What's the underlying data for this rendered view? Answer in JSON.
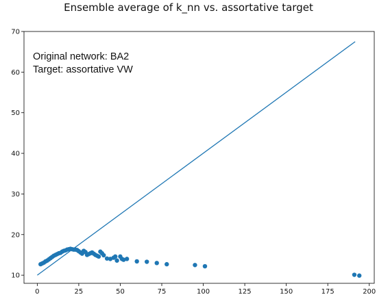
{
  "chart_data": {
    "type": "scatter",
    "title": "Ensemble average of k_nn vs. assortative target",
    "xlabel": "",
    "ylabel": "",
    "xlim": [
      -8,
      203
    ],
    "ylim": [
      8,
      70
    ],
    "xticks": [
      0,
      25,
      50,
      75,
      100,
      125,
      150,
      175,
      200
    ],
    "yticks": [
      10,
      20,
      30,
      40,
      50,
      60,
      70
    ],
    "grid": false,
    "annotations": [
      "Original network: BA2",
      "Target: assortative VW"
    ],
    "line": {
      "type": "line",
      "x": [
        0,
        191.5
      ],
      "y": [
        10.0,
        67.5
      ],
      "color": "#1f77b4"
    },
    "scatter": {
      "type": "scatter",
      "color": "#1f77b4",
      "points": [
        [
          2,
          12.7
        ],
        [
          3,
          12.9
        ],
        [
          4,
          13.1
        ],
        [
          5,
          13.4
        ],
        [
          6,
          13.6
        ],
        [
          7,
          13.9
        ],
        [
          8,
          14.2
        ],
        [
          9,
          14.5
        ],
        [
          10,
          14.8
        ],
        [
          11,
          15.0
        ],
        [
          12,
          15.2
        ],
        [
          13,
          15.4
        ],
        [
          14,
          15.5
        ],
        [
          15,
          15.8
        ],
        [
          16,
          16.0
        ],
        [
          17,
          16.1
        ],
        [
          18,
          16.3
        ],
        [
          19,
          16.4
        ],
        [
          20,
          16.5
        ],
        [
          21,
          16.4
        ],
        [
          22,
          16.3
        ],
        [
          23,
          16.3
        ],
        [
          24,
          16.2
        ],
        [
          25,
          15.9
        ],
        [
          26,
          15.6
        ],
        [
          27,
          15.3
        ],
        [
          28,
          16.0
        ],
        [
          29,
          15.7
        ],
        [
          30,
          15.0
        ],
        [
          31,
          15.2
        ],
        [
          32,
          15.4
        ],
        [
          33,
          15.6
        ],
        [
          34,
          15.3
        ],
        [
          35,
          15.0
        ],
        [
          36,
          14.8
        ],
        [
          37,
          14.6
        ],
        [
          38,
          15.8
        ],
        [
          39,
          15.4
        ],
        [
          40,
          14.9
        ],
        [
          42,
          14.1
        ],
        [
          44,
          14.0
        ],
        [
          46,
          14.3
        ],
        [
          47,
          14.6
        ],
        [
          48,
          13.6
        ],
        [
          50,
          14.6
        ],
        [
          51,
          14.0
        ],
        [
          52,
          13.8
        ],
        [
          54,
          14.0
        ],
        [
          60,
          13.4
        ],
        [
          66,
          13.3
        ],
        [
          72,
          13.0
        ],
        [
          78,
          12.7
        ],
        [
          95,
          12.5
        ],
        [
          101,
          12.2
        ],
        [
          191,
          10.1
        ],
        [
          194,
          9.9
        ]
      ]
    }
  }
}
